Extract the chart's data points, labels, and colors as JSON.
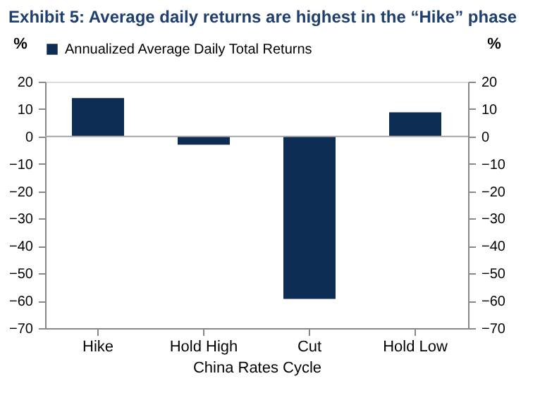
{
  "chart_data": {
    "type": "bar",
    "title": "Exhibit 5: Average daily returns are highest in the “Hike” phase",
    "categories": [
      "Hike",
      "Hold High",
      "Cut",
      "Hold Low"
    ],
    "series": [
      {
        "name": "Annualized Average Daily Total Returns",
        "color": "#0d2d54",
        "values": [
          14,
          -3,
          -59.3,
          8.8
        ]
      }
    ],
    "xlabel": "China Rates Cycle",
    "ylabel": "%",
    "y2label": "%",
    "ylim": [
      -70,
      20
    ],
    "yticks": [
      -70,
      -60,
      -50,
      -40,
      -30,
      -20,
      -10,
      0,
      10,
      20
    ],
    "y2lim": [
      -70,
      20
    ],
    "y2ticks": [
      -70,
      -60,
      -50,
      -40,
      -30,
      -20,
      -10,
      0,
      10,
      20
    ],
    "ref_lines": [
      {
        "axis": "y",
        "value": 0,
        "color": "#a6a6a6"
      }
    ],
    "legend": "top",
    "grid": false
  }
}
